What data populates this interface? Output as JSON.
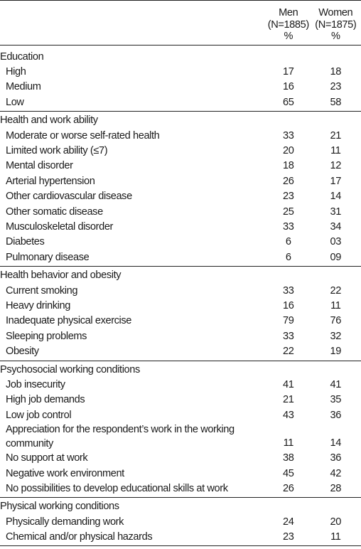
{
  "header": {
    "men": [
      "Men",
      "(N=1885)",
      "%"
    ],
    "women": [
      "Women",
      "(N=1875)",
      "%"
    ]
  },
  "groups": [
    {
      "title": "Education",
      "rows": [
        {
          "label": "High",
          "men": "17",
          "women": "18"
        },
        {
          "label": "Medium",
          "men": "16",
          "women": "23"
        },
        {
          "label": "Low",
          "men": "65",
          "women": "58"
        }
      ]
    },
    {
      "title": "Health and work ability",
      "rows": [
        {
          "label": "Moderate or worse self-rated health",
          "men": "33",
          "women": "21"
        },
        {
          "label": "Limited work ability (≤7)",
          "men": "20",
          "women": "11"
        },
        {
          "label": "Mental disorder",
          "men": "18",
          "women": "12"
        },
        {
          "label": "Arterial hypertension",
          "men": "26",
          "women": "17"
        },
        {
          "label": "Other cardiovascular disease",
          "men": "23",
          "women": "14"
        },
        {
          "label": "Other somatic disease",
          "men": "25",
          "women": "31"
        },
        {
          "label": "Musculoskeletal disorder",
          "men": "33",
          "women": "34"
        },
        {
          "label": "Diabetes",
          "men": "6",
          "women": "03"
        },
        {
          "label": "Pulmonary disease",
          "men": "6",
          "women": "09"
        }
      ]
    },
    {
      "title": "Health behavior and obesity",
      "rows": [
        {
          "label": "Current smoking",
          "men": "33",
          "women": "22"
        },
        {
          "label": "Heavy drinking",
          "men": "16",
          "women": "11"
        },
        {
          "label": "Inadequate physical exercise",
          "men": "79",
          "women": "76"
        },
        {
          "label": "Sleeping problems",
          "men": "33",
          "women": "32"
        },
        {
          "label": "Obesity",
          "men": "22",
          "women": "19"
        }
      ]
    },
    {
      "title": "Psychosocial working conditions",
      "rows": [
        {
          "label": "Job insecurity",
          "men": "41",
          "women": "41"
        },
        {
          "label": "High job demands",
          "men": "21",
          "women": "35"
        },
        {
          "label": "Low job control",
          "men": "43",
          "women": "36"
        },
        {
          "label": "Appreciation for the respondent’s work in the working community",
          "men": "11",
          "women": "14"
        },
        {
          "label": "No support at work",
          "men": "38",
          "women": "36"
        },
        {
          "label": "Negative work environment",
          "men": "45",
          "women": "42"
        },
        {
          "label": "No possibilities to develop educational skills at work",
          "men": "26",
          "women": "28"
        }
      ]
    },
    {
      "title": "Physical working conditions",
      "rows": [
        {
          "label": "Physically demanding work",
          "men": "24",
          "women": "20"
        },
        {
          "label": "Chemical and/or physical hazards",
          "men": "23",
          "women": "11"
        }
      ]
    }
  ]
}
